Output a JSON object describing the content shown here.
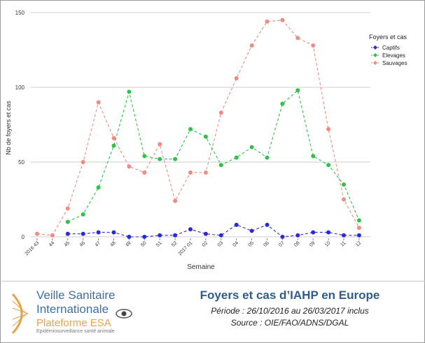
{
  "chart_data": {
    "type": "line",
    "xlabel": "Semaine",
    "ylabel": "Nb de foyers et cas",
    "ylim": [
      0,
      150
    ],
    "yticks": [
      0,
      50,
      100,
      150
    ],
    "grid": true,
    "legend_title": "Foyers et cas",
    "legend_position": "right",
    "categories": [
      "2016 43",
      "44",
      "45",
      "46",
      "47",
      "48",
      "49",
      "50",
      "51",
      "52",
      "2017 01",
      "02",
      "03",
      "04",
      "05",
      "06",
      "07",
      "08",
      "09",
      "10",
      "11",
      "12"
    ],
    "series": [
      {
        "name": "Captifs",
        "color": "#2b2bd6",
        "values": [
          null,
          null,
          2,
          2,
          3,
          3,
          0,
          0,
          1,
          1,
          5,
          2,
          1,
          8,
          4,
          8,
          0,
          1,
          3,
          3,
          1,
          1
        ]
      },
      {
        "name": "Elevages",
        "color": "#2ec24a",
        "values": [
          null,
          null,
          10,
          15,
          33,
          61,
          97,
          54,
          52,
          52,
          72,
          67,
          48,
          53,
          60,
          53,
          89,
          98,
          54,
          48,
          35,
          11
        ]
      },
      {
        "name": "Sauvages",
        "color": "#f08b82",
        "values": [
          2,
          1,
          19,
          50,
          90,
          66,
          47,
          43,
          62,
          24,
          43,
          43,
          83,
          106,
          128,
          144,
          145,
          133,
          128,
          72,
          25,
          6
        ]
      }
    ]
  },
  "footer": {
    "logo_line1": "Veille Sanitaire",
    "logo_line2": "Internationale",
    "logo_line3": "Plateforme ESA",
    "logo_line4": "Epidémiosurveillance santé animale",
    "title": "Foyers et cas d’IAHP en Europe",
    "period": "Période : 26/10/2016 au 26/03/2017 inclus",
    "source": "Source : OIE/FAO/ADNS/DGAL"
  }
}
